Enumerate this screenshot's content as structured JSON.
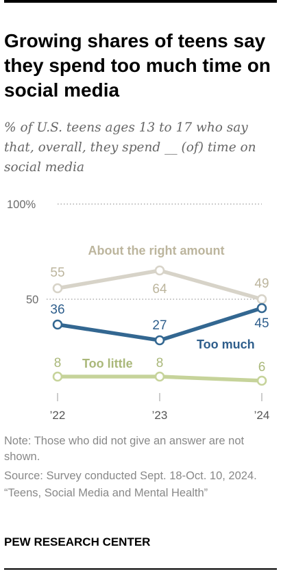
{
  "title": "Growing shares of teens say they spend too much time on social media",
  "subtitle": "% of U.S. teens ages 13 to 17 who say that, overall, they spend __ (of) time on social media",
  "note": "Note: Those who did not give an answer are not shown.",
  "source": "Source: Survey conducted Sept. 18-Oct. 10, 2024.",
  "report": "“Teens, Social Media and Mental Health”",
  "brand": "PEW RESEARCH CENTER",
  "chart_data": {
    "type": "line",
    "x": [
      "’22",
      "’23",
      "’24"
    ],
    "ylim": [
      0,
      100
    ],
    "y_ticks": [
      {
        "value": 100,
        "label": "100%"
      },
      {
        "value": 50,
        "label": "50"
      }
    ],
    "grid": "dotted at 50 and 100",
    "series": [
      {
        "name": "About the right amount",
        "values": [
          55,
          64,
          49
        ],
        "color": "#d7d3c8",
        "label_color": "#bcb59d"
      },
      {
        "name": "Too much",
        "values": [
          36,
          27,
          45
        ],
        "color": "#336791",
        "label_color": "#2e5e8c"
      },
      {
        "name": "Too little",
        "values": [
          8,
          8,
          6
        ],
        "color": "#c6d39a",
        "label_color": "#aab87a"
      }
    ]
  }
}
